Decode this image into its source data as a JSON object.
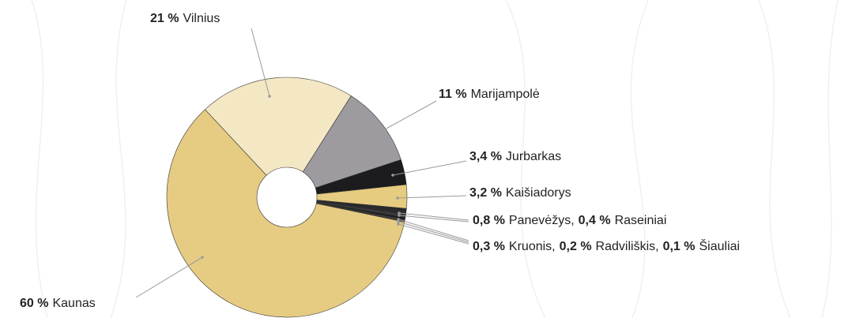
{
  "chart_data": {
    "type": "pie",
    "categories": [
      "Vilnius",
      "Marijampolė",
      "Jurbarkas",
      "Kaišiadorys",
      "Panevėžys",
      "Raseiniai",
      "Kruonis",
      "Radviliškis",
      "Šiauliai",
      "Kaunas"
    ],
    "values": [
      21,
      11,
      3.4,
      3.2,
      0.8,
      0.4,
      0.3,
      0.2,
      0.1,
      60
    ],
    "value_labels": [
      "21 %",
      "11 %",
      "3,4 %",
      "3,2 %",
      "0,8 %",
      "0,4 %",
      "0,3 %",
      "0,2 %",
      "0,1 %",
      "60 %"
    ],
    "colors": [
      "#f3e7c4",
      "#9d9b9f",
      "#1c1c1e",
      "#e6cc80",
      "#2a2a2c",
      "#3a3a3c",
      "#1c1c1e",
      "#4a4a4c",
      "#2a2a2c",
      "#e6cc82"
    ],
    "separator": ","
  }
}
